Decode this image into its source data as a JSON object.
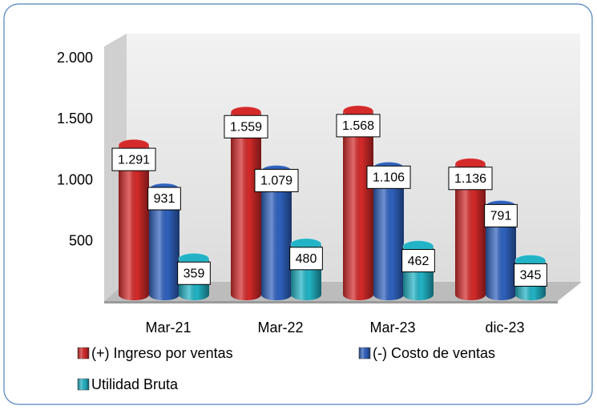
{
  "chart_data": {
    "type": "bar",
    "categories": [
      "Mar-21",
      "Mar-22",
      "Mar-23",
      "dic-23"
    ],
    "series": [
      {
        "name": "(+) Ingreso por ventas",
        "color": "#d42a2a",
        "values": [
          1291,
          1559,
          1568,
          1136
        ],
        "value_labels": [
          "1.291",
          "1.559",
          "1.568",
          "1.136"
        ]
      },
      {
        "name": "(-) Costo de ventas",
        "color": "#2f62be",
        "values": [
          931,
          1079,
          1106,
          791
        ],
        "value_labels": [
          "931",
          "1.079",
          "1.106",
          "791"
        ]
      },
      {
        "name": "Utilidad Bruta",
        "color": "#22b4c6",
        "values": [
          359,
          480,
          462,
          345
        ],
        "value_labels": [
          "359",
          "480",
          "462",
          "345"
        ]
      }
    ],
    "ylim": [
      0,
      2000
    ],
    "yticks": [
      {
        "value": 500,
        "label": "500"
      },
      {
        "value": 1000,
        "label": "1.000"
      },
      {
        "value": 1500,
        "label": "1.500"
      },
      {
        "value": 2000,
        "label": "2.000"
      }
    ],
    "grid": false
  }
}
